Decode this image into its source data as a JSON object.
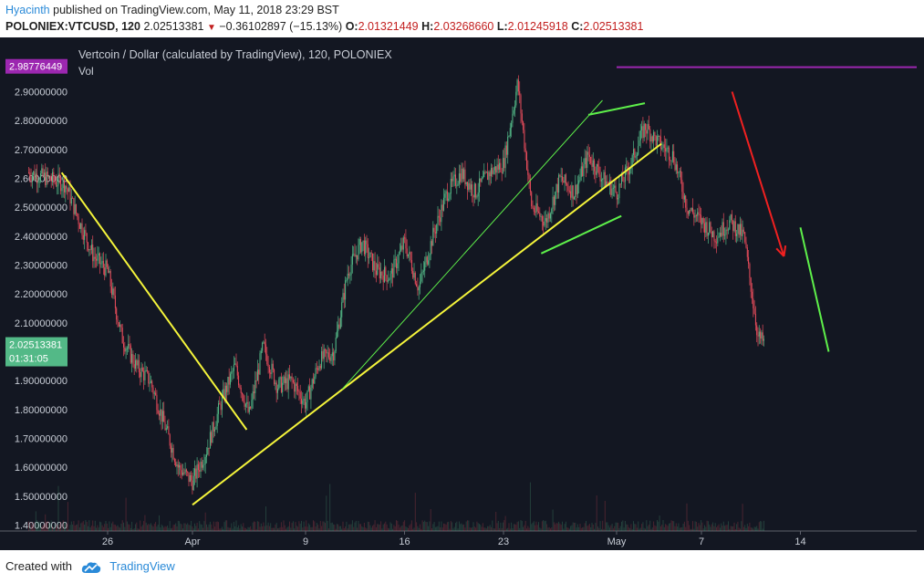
{
  "header": {
    "author": "Hyacinth",
    "published_text": "published on TradingView.com, May 11, 2018 23:29 BST",
    "symbol": "POLONIEX:VTCUSD, 120",
    "last": "2.02513381",
    "change": "−0.36102897 (−15.13%)",
    "o_label": "O:",
    "o": "2.01321449",
    "h_label": "H:",
    "h": "2.03268660",
    "l_label": "L:",
    "l": "2.01245918",
    "c_label": "C:",
    "c": "2.02513381"
  },
  "legend": {
    "title": "Vertcoin / Dollar (calculated by TradingView), 120, POLONIEX",
    "vol": "Vol"
  },
  "footer": {
    "created": "Created with",
    "brand": "TradingView",
    "logo_icon": "tradingview-cloud-icon"
  },
  "colors": {
    "background": "#131722",
    "up": "#53b987",
    "down": "#eb4d5c",
    "price_axis_tag": "#53b987",
    "high_tag": "#9c27b0",
    "yellow": "#f5f53b",
    "green_line": "#5ef04a",
    "red_arrow": "#f02020"
  },
  "chart_data": {
    "type": "candlestick",
    "title": "Vertcoin / Dollar (calculated by TradingView), 120, POLONIEX",
    "interval": "120",
    "y_range": [
      1.38,
      2.99
    ],
    "y_ticks": [
      "2.90000000",
      "2.80000000",
      "2.70000000",
      "2.60000000",
      "2.50000000",
      "2.40000000",
      "2.30000000",
      "2.20000000",
      "2.10000000",
      "2.00000000",
      "1.90000000",
      "1.80000000",
      "1.70000000",
      "1.60000000",
      "1.50000000",
      "1.40000000"
    ],
    "x_ticks": [
      {
        "label": "26",
        "date": "2018-03-26"
      },
      {
        "label": "Apr",
        "date": "2018-04-01"
      },
      {
        "label": "9",
        "date": "2018-04-09"
      },
      {
        "label": "16",
        "date": "2018-04-16"
      },
      {
        "label": "23",
        "date": "2018-04-23"
      },
      {
        "label": "May",
        "date": "2018-05-01"
      },
      {
        "label": "7",
        "date": "2018-05-07"
      },
      {
        "label": "14",
        "date": "2018-05-14"
      }
    ],
    "price_path": [
      {
        "date": "2018-03-23T00:00",
        "price": 2.58
      },
      {
        "date": "2018-03-24T00:00",
        "price": 2.45
      },
      {
        "date": "2018-03-25T00:00",
        "price": 2.33
      },
      {
        "date": "2018-03-26T00:00",
        "price": 2.28
      },
      {
        "date": "2018-03-27T00:00",
        "price": 2.05
      },
      {
        "date": "2018-03-28T00:00",
        "price": 1.95
      },
      {
        "date": "2018-03-29T00:00",
        "price": 1.9
      },
      {
        "date": "2018-03-30T00:00",
        "price": 1.75
      },
      {
        "date": "2018-03-31T00:00",
        "price": 1.6
      },
      {
        "date": "2018-04-01T00:00",
        "price": 1.55
      },
      {
        "date": "2018-04-02T00:00",
        "price": 1.66
      },
      {
        "date": "2018-04-03T00:00",
        "price": 1.82
      },
      {
        "date": "2018-04-04T00:00",
        "price": 1.95
      },
      {
        "date": "2018-04-05T00:00",
        "price": 1.78
      },
      {
        "date": "2018-04-06T00:00",
        "price": 2.02
      },
      {
        "date": "2018-04-07T00:00",
        "price": 1.88
      },
      {
        "date": "2018-04-08T00:00",
        "price": 1.9
      },
      {
        "date": "2018-04-09T00:00",
        "price": 1.82
      },
      {
        "date": "2018-04-10T00:00",
        "price": 1.97
      },
      {
        "date": "2018-04-11T00:00",
        "price": 2.0
      },
      {
        "date": "2018-04-12T00:00",
        "price": 2.28
      },
      {
        "date": "2018-04-13T00:00",
        "price": 2.38
      },
      {
        "date": "2018-04-14T00:00",
        "price": 2.28
      },
      {
        "date": "2018-04-15T00:00",
        "price": 2.26
      },
      {
        "date": "2018-04-16T00:00",
        "price": 2.38
      },
      {
        "date": "2018-04-17T00:00",
        "price": 2.22
      },
      {
        "date": "2018-04-18T00:00",
        "price": 2.4
      },
      {
        "date": "2018-04-19T00:00",
        "price": 2.55
      },
      {
        "date": "2018-04-20T00:00",
        "price": 2.62
      },
      {
        "date": "2018-04-21T00:00",
        "price": 2.55
      },
      {
        "date": "2018-04-22T00:00",
        "price": 2.62
      },
      {
        "date": "2018-04-23T00:00",
        "price": 2.65
      },
      {
        "date": "2018-04-24T00:00",
        "price": 2.93
      },
      {
        "date": "2018-04-25T00:00",
        "price": 2.5
      },
      {
        "date": "2018-04-26T00:00",
        "price": 2.45
      },
      {
        "date": "2018-04-27T00:00",
        "price": 2.6
      },
      {
        "date": "2018-04-28T00:00",
        "price": 2.55
      },
      {
        "date": "2018-04-29T00:00",
        "price": 2.68
      },
      {
        "date": "2018-04-30T00:00",
        "price": 2.6
      },
      {
        "date": "2018-05-01T00:00",
        "price": 2.55
      },
      {
        "date": "2018-05-02T00:00",
        "price": 2.65
      },
      {
        "date": "2018-05-03T00:00",
        "price": 2.78
      },
      {
        "date": "2018-05-04T00:00",
        "price": 2.72
      },
      {
        "date": "2018-05-05T00:00",
        "price": 2.68
      },
      {
        "date": "2018-05-06T00:00",
        "price": 2.5
      },
      {
        "date": "2018-05-07T00:00",
        "price": 2.45
      },
      {
        "date": "2018-05-08T00:00",
        "price": 2.4
      },
      {
        "date": "2018-05-09T00:00",
        "price": 2.45
      },
      {
        "date": "2018-05-10T00:00",
        "price": 2.4
      },
      {
        "date": "2018-05-11T00:00",
        "price": 2.05
      },
      {
        "date": "2018-05-11T12:00",
        "price": 2.03
      }
    ],
    "price_labels": {
      "last_price": "2.02513381",
      "countdown": "01:31:05",
      "high_marker": "2.98776449"
    },
    "trendlines": [
      {
        "color": "yellow",
        "from": {
          "date": "2018-03-22T18:00",
          "price": 2.62
        },
        "to": {
          "date": "2018-04-04T20:00",
          "price": 1.73
        }
      },
      {
        "color": "yellow",
        "from": {
          "date": "2018-04-01T00:00",
          "price": 1.47
        },
        "to": {
          "date": "2018-05-04T04:00",
          "price": 2.72
        }
      },
      {
        "color": "green",
        "from": {
          "date": "2018-04-11T14:00",
          "price": 1.87
        },
        "to": {
          "date": "2018-04-30T00:00",
          "price": 2.87
        }
      },
      {
        "color": "green",
        "from": {
          "date": "2018-04-25T16:00",
          "price": 2.34
        },
        "to": {
          "date": "2018-05-01T08:00",
          "price": 2.47
        }
      },
      {
        "color": "green",
        "from": {
          "date": "2018-04-29T00:00",
          "price": 2.82
        },
        "to": {
          "date": "2018-05-03T00:00",
          "price": 2.86
        }
      },
      {
        "color": "green",
        "from": {
          "date": "2018-05-14T00:00",
          "price": 2.43
        },
        "to": {
          "date": "2018-05-16T00:00",
          "price": 2.0
        }
      }
    ],
    "arrow": {
      "color": "red",
      "from": {
        "date": "2018-05-09T04:00",
        "price": 2.9
      },
      "to": {
        "date": "2018-05-12T20:00",
        "price": 2.33
      }
    },
    "horizontal_line": {
      "color": "purple",
      "price": 2.985,
      "from_date": "2018-05-01T00:00"
    }
  }
}
